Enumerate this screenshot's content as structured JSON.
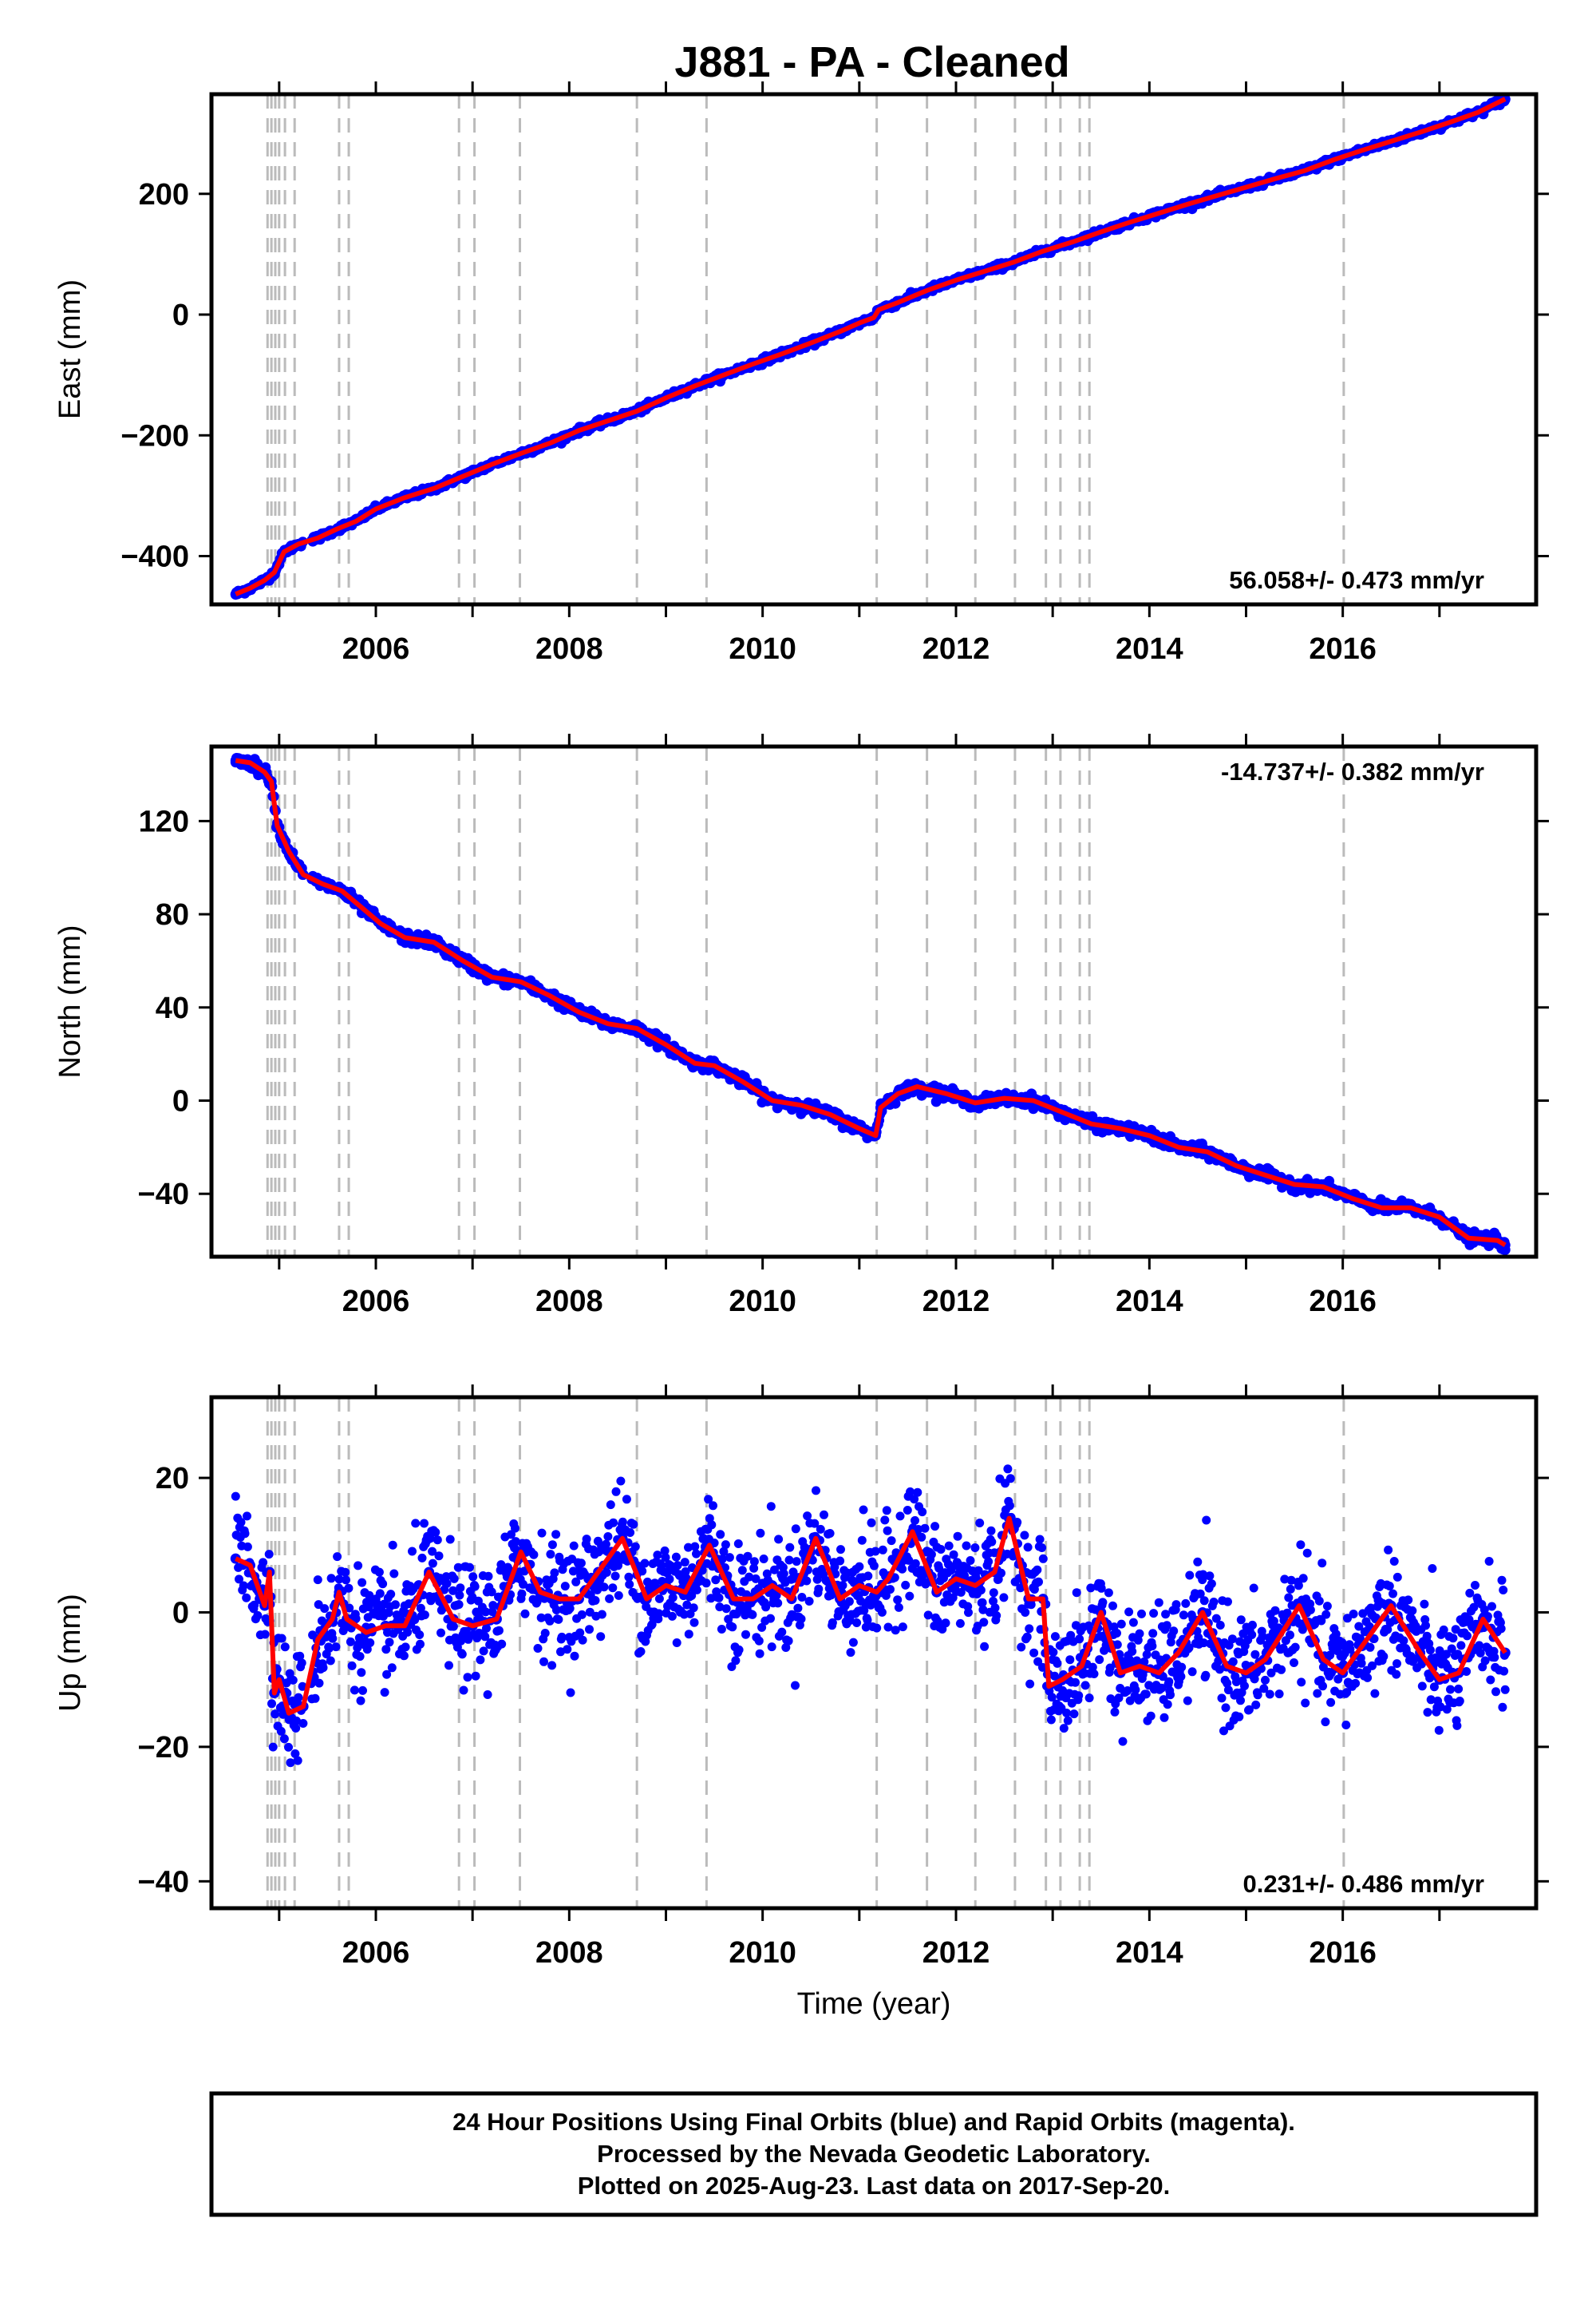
{
  "title": "J881  - PA - Cleaned",
  "footer": {
    "line1": "24 Hour Positions Using Final Orbits (blue) and Rapid Orbits (magenta).",
    "line2": "Processed by the Nevada Geodetic Laboratory.",
    "line3": "Plotted on 2025-Aug-23. Last data on 2017-Sep-20."
  },
  "colors": {
    "data": "#0000ff",
    "model": "#ff0000",
    "event": "#bbbbbb",
    "axis": "#000000"
  },
  "chart_data": [
    {
      "type": "scatter",
      "ylabel": "East (mm)",
      "xlabel": "",
      "xlim": [
        2004.3,
        2018.0
      ],
      "ylim": [
        -480,
        365
      ],
      "yticks": [
        -400,
        -200,
        0,
        200
      ],
      "xticks": [
        2006,
        2008,
        2010,
        2012,
        2014,
        2016
      ],
      "rate_label": "56.058+/- 0.473 mm/yr",
      "rate_position": "bottom-right",
      "grid": false,
      "event_lines_x": [
        2004.88,
        2004.92,
        2004.96,
        2005.0,
        2005.06,
        2005.16,
        2005.62,
        2005.72,
        2006.86,
        2007.02,
        2007.49,
        2008.7,
        2009.42,
        2011.18,
        2011.7,
        2012.2,
        2012.61,
        2012.93,
        2013.08,
        2013.28,
        2013.38,
        2016.01
      ],
      "series": [
        {
          "name": "",
          "style": "points+line",
          "x": [
            2004.55,
            2004.7,
            2004.85,
            2004.95,
            2005.05,
            2005.2,
            2005.4,
            2005.6,
            2005.8,
            2006.0,
            2006.3,
            2006.6,
            2006.9,
            2007.2,
            2007.5,
            2007.8,
            2008.1,
            2008.4,
            2008.7,
            2009.0,
            2009.3,
            2009.6,
            2009.9,
            2010.2,
            2010.5,
            2010.8,
            2011.0,
            2011.15,
            2011.2,
            2011.4,
            2011.7,
            2012.0,
            2012.3,
            2012.6,
            2012.9,
            2013.2,
            2013.5,
            2013.8,
            2014.1,
            2014.4,
            2014.7,
            2015.0,
            2015.3,
            2015.6,
            2015.9,
            2016.2,
            2016.5,
            2016.8,
            2017.1,
            2017.4,
            2017.68
          ],
          "y": [
            -463,
            -453,
            -440,
            -427,
            -393,
            -380,
            -370,
            -355,
            -342,
            -322,
            -303,
            -288,
            -268,
            -248,
            -230,
            -213,
            -192,
            -176,
            -160,
            -138,
            -118,
            -100,
            -82,
            -65,
            -47,
            -28,
            -14,
            -5,
            8,
            20,
            40,
            57,
            72,
            87,
            105,
            120,
            137,
            153,
            168,
            183,
            197,
            211,
            225,
            238,
            256,
            272,
            287,
            302,
            318,
            335,
            357
          ]
        }
      ]
    },
    {
      "type": "scatter",
      "ylabel": "North (mm)",
      "xlabel": "",
      "xlim": [
        2004.3,
        2018.0
      ],
      "ylim": [
        -67,
        152
      ],
      "yticks": [
        -40,
        0,
        40,
        80,
        120
      ],
      "xticks": [
        2006,
        2008,
        2010,
        2012,
        2014,
        2016
      ],
      "rate_label": "-14.737+/- 0.382 mm/yr",
      "rate_position": "top-right",
      "grid": false,
      "event_lines_x": [
        2004.88,
        2004.92,
        2004.96,
        2005.0,
        2005.06,
        2005.16,
        2005.62,
        2005.72,
        2006.86,
        2007.02,
        2007.49,
        2008.7,
        2009.42,
        2011.18,
        2011.7,
        2012.2,
        2012.61,
        2012.93,
        2013.08,
        2013.28,
        2013.38,
        2016.01
      ],
      "series": [
        {
          "name": "",
          "style": "points+line",
          "x": [
            2004.55,
            2004.7,
            2004.85,
            2004.92,
            2004.98,
            2005.1,
            2005.25,
            2005.45,
            2005.65,
            2005.85,
            2006.05,
            2006.3,
            2006.6,
            2006.9,
            2007.2,
            2007.5,
            2007.8,
            2008.1,
            2008.4,
            2008.7,
            2009.0,
            2009.3,
            2009.5,
            2009.8,
            2010.1,
            2010.4,
            2010.7,
            2011.0,
            2011.17,
            2011.22,
            2011.4,
            2011.6,
            2011.9,
            2012.2,
            2012.5,
            2012.8,
            2013.1,
            2013.4,
            2013.7,
            2014.0,
            2014.3,
            2014.6,
            2014.9,
            2015.2,
            2015.5,
            2015.8,
            2016.1,
            2016.4,
            2016.7,
            2017.0,
            2017.3,
            2017.6,
            2017.68
          ],
          "y": [
            146,
            145,
            141,
            137,
            118,
            107,
            97,
            93,
            90,
            83,
            76,
            70,
            68,
            60,
            53,
            51,
            45,
            38,
            33,
            31,
            24,
            16,
            15,
            8,
            0,
            -2,
            -6,
            -12,
            -15,
            -3,
            3,
            6,
            3,
            -1,
            1,
            0,
            -5,
            -10,
            -12,
            -15,
            -20,
            -22,
            -28,
            -32,
            -36,
            -37,
            -42,
            -46,
            -46,
            -50,
            -59,
            -60,
            -62
          ]
        }
      ]
    },
    {
      "type": "scatter",
      "ylabel": "Up (mm)",
      "xlabel": "Time (year)",
      "xlim": [
        2004.3,
        2018.0
      ],
      "ylim": [
        -44,
        32
      ],
      "yticks": [
        -40,
        -20,
        0,
        20
      ],
      "xticks": [
        2006,
        2008,
        2010,
        2012,
        2014,
        2016
      ],
      "rate_label": "0.231+/- 0.486 mm/yr",
      "rate_position": "bottom-right",
      "grid": false,
      "event_lines_x": [
        2004.88,
        2004.92,
        2004.96,
        2005.0,
        2005.06,
        2005.16,
        2005.62,
        2005.72,
        2006.86,
        2007.02,
        2007.49,
        2008.7,
        2009.42,
        2011.18,
        2011.7,
        2012.2,
        2012.61,
        2012.93,
        2013.08,
        2013.28,
        2013.38,
        2016.01
      ],
      "series": [
        {
          "name": "",
          "style": "points+line",
          "x": [
            2004.55,
            2004.7,
            2004.85,
            2004.9,
            2004.95,
            2005.0,
            2005.1,
            2005.25,
            2005.4,
            2005.55,
            2005.62,
            2005.7,
            2005.9,
            2006.1,
            2006.3,
            2006.55,
            2006.8,
            2007.0,
            2007.25,
            2007.5,
            2007.7,
            2007.9,
            2008.1,
            2008.3,
            2008.55,
            2008.8,
            2009.0,
            2009.2,
            2009.45,
            2009.7,
            2009.9,
            2010.1,
            2010.3,
            2010.55,
            2010.8,
            2011.0,
            2011.18,
            2011.3,
            2011.55,
            2011.8,
            2012.0,
            2012.2,
            2012.4,
            2012.55,
            2012.75,
            2012.9,
            2012.96,
            2013.1,
            2013.3,
            2013.5,
            2013.7,
            2013.9,
            2014.1,
            2014.3,
            2014.55,
            2014.8,
            2015.0,
            2015.2,
            2015.55,
            2015.8,
            2016.0,
            2016.2,
            2016.5,
            2016.8,
            2017.0,
            2017.2,
            2017.45,
            2017.68
          ],
          "y": [
            8,
            7,
            1,
            6,
            -12,
            -10,
            -15,
            -14,
            -4,
            -1,
            3,
            -1,
            -3,
            -2,
            -2,
            6,
            -1,
            -2,
            -1,
            9,
            3,
            2,
            2,
            6,
            11,
            2,
            4,
            3,
            10,
            2,
            2,
            4,
            2,
            11,
            2,
            4,
            3,
            5,
            12,
            3,
            5,
            4,
            6,
            14,
            2,
            2,
            -11,
            -10,
            -8,
            0,
            -9,
            -8,
            -9,
            -6,
            0,
            -8,
            -9,
            -7,
            1,
            -7,
            -9,
            -5,
            1,
            -6,
            -10,
            -9,
            -1,
            -6
          ]
        }
      ]
    }
  ]
}
